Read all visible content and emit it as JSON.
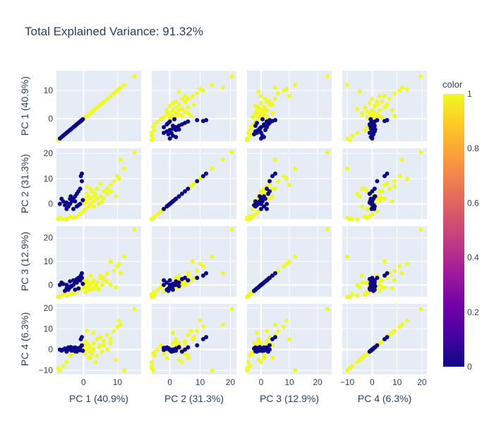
{
  "chart_data": {
    "type": "scatter",
    "subtype": "scatter-matrix",
    "title": "Total Explained Variance: 91.32%",
    "dimensions": [
      "PC 1 (40.9%)",
      "PC 2 (31.3%)",
      "PC 3 (12.9%)",
      "PC 4 (6.3%)"
    ],
    "axes": [
      {
        "label": "PC 1 (40.9%)",
        "range": [
          -8,
          17
        ],
        "ticks": [
          0,
          10
        ],
        "tick_labels": [
          "0",
          "10"
        ]
      },
      {
        "label": "PC 2 (31.3%)",
        "range": [
          -6,
          22
        ],
        "ticks": [
          0,
          10,
          20
        ],
        "tick_labels": [
          "0",
          "10",
          "20"
        ]
      },
      {
        "label": "PC 3 (12.9%)",
        "range": [
          -5,
          25
        ],
        "ticks": [
          0,
          10,
          20
        ],
        "tick_labels": [
          "0",
          "10",
          "20"
        ]
      },
      {
        "label": "PC 4 (6.3%)",
        "range": [
          -12,
          22
        ],
        "ticks": [
          -10,
          0,
          10,
          20
        ],
        "tick_labels": [
          "−10",
          "0",
          "10",
          "20"
        ]
      }
    ],
    "colorbar": {
      "title": "color",
      "range": [
        0,
        1
      ],
      "ticks": [
        0,
        0.2,
        0.4,
        0.6,
        0.8,
        1
      ],
      "tick_labels": [
        "0",
        "0.2",
        "0.4",
        "0.6",
        "0.8",
        "1"
      ],
      "colorscale": [
        "#0d0887",
        "#46039f",
        "#7201a8",
        "#9c179e",
        "#bd3786",
        "#d8576b",
        "#ed7953",
        "#fb9f3a",
        "#fdca26",
        "#f0f921"
      ]
    },
    "series": [
      {
        "color_value": 1,
        "color": "#f0f921",
        "points": [
          [
            15.0,
            20.5,
            23.5,
            19.5
          ],
          [
            12.0,
            14.0,
            12.0,
            -10.0
          ],
          [
            11.0,
            17.5,
            5.0,
            12.0
          ],
          [
            10.0,
            11.0,
            8.0,
            11.0
          ],
          [
            9.0,
            9.0,
            6.0,
            9.0
          ],
          [
            8.0,
            7.5,
            10.0,
            5.0
          ],
          [
            7.0,
            6.0,
            5.0,
            7.0
          ],
          [
            6.0,
            5.0,
            2.0,
            4.0
          ],
          [
            5.0,
            8.0,
            3.0,
            6.0
          ],
          [
            5.0,
            3.0,
            4.0,
            2.0
          ],
          [
            4.0,
            6.0,
            1.0,
            -3.0
          ],
          [
            4.0,
            2.0,
            -1.0,
            5.0
          ],
          [
            3.5,
            4.0,
            0.0,
            -6.0
          ],
          [
            3.0,
            3.0,
            2.0,
            3.0
          ],
          [
            3.0,
            1.0,
            -1.5,
            8.0
          ],
          [
            2.5,
            5.0,
            1.0,
            -2.0
          ],
          [
            2.0,
            2.0,
            0.0,
            1.0
          ],
          [
            2.0,
            0.0,
            -2.0,
            -1.0
          ],
          [
            1.5,
            3.0,
            -1.0,
            2.0
          ],
          [
            1.5,
            -1.0,
            1.0,
            -4.0
          ],
          [
            1.0,
            1.0,
            -2.5,
            3.0
          ],
          [
            1.0,
            4.0,
            0.5,
            0.0
          ],
          [
            0.5,
            2.0,
            -1.0,
            4.0
          ],
          [
            0.5,
            -2.0,
            -3.0,
            -2.0
          ],
          [
            0.2,
            0.0,
            2.0,
            1.0
          ],
          [
            6.0,
            2.0,
            3.0,
            2.0
          ],
          [
            7.0,
            4.0,
            1.5,
            0.0
          ],
          [
            8.0,
            5.0,
            0.0,
            3.0
          ],
          [
            9.5,
            3.0,
            -1.0,
            -5.0
          ],
          [
            10.5,
            10.0,
            9.0,
            14.0
          ],
          [
            3.0,
            -1.0,
            1.0,
            0.0
          ],
          [
            4.5,
            0.0,
            -2.0,
            1.0
          ],
          [
            5.5,
            1.0,
            0.0,
            -1.0
          ],
          [
            2.0,
            6.0,
            4.0,
            -4.0
          ],
          [
            1.0,
            7.0,
            2.0,
            9.0
          ],
          [
            0.0,
            -3.0,
            -1.0,
            2.0
          ],
          [
            -1.0,
            -4.0,
            -2.0,
            0.0
          ],
          [
            -2.0,
            -5.0,
            -3.0,
            -1.0
          ],
          [
            -3.0,
            -5.5,
            -3.5,
            -2.0
          ],
          [
            -4.0,
            -5.0,
            -4.0,
            -3.0
          ],
          [
            -5.0,
            -6.0,
            -4.5,
            -6.0
          ],
          [
            -6.0,
            -6.0,
            -4.0,
            -8.0
          ],
          [
            -7.0,
            -5.5,
            -5.0,
            -10.0
          ],
          [
            -7.5,
            -6.0,
            -5.0,
            -9.0
          ]
        ]
      },
      {
        "color_value": 0,
        "color": "#0d0887",
        "points": [
          [
            -0.5,
            12.0,
            5.0,
            6.0
          ],
          [
            -0.8,
            11.0,
            4.0,
            5.0
          ],
          [
            -0.5,
            9.0,
            3.0,
            2.0
          ],
          [
            -1.0,
            6.0,
            2.0,
            1.0
          ],
          [
            -1.5,
            5.0,
            3.0,
            0.0
          ],
          [
            -2.0,
            4.0,
            2.5,
            -1.0
          ],
          [
            -2.5,
            3.0,
            1.0,
            1.0
          ],
          [
            -3.0,
            2.0,
            0.0,
            0.5
          ],
          [
            -3.5,
            1.0,
            -0.5,
            -0.5
          ],
          [
            -4.0,
            0.0,
            -1.0,
            0.0
          ],
          [
            -4.5,
            -1.0,
            -2.0,
            1.0
          ],
          [
            -5.0,
            0.5,
            -1.5,
            -1.0
          ],
          [
            -5.5,
            -0.5,
            -2.5,
            0.5
          ],
          [
            -6.0,
            1.0,
            0.5,
            0.0
          ],
          [
            -6.5,
            2.0,
            1.0,
            -0.5
          ],
          [
            -7.0,
            0.0,
            0.0,
            0.0
          ],
          [
            -2.0,
            -1.0,
            1.0,
            0.3
          ],
          [
            -1.0,
            0.0,
            2.0,
            -0.3
          ],
          [
            -3.0,
            -2.0,
            2.0,
            0.8
          ],
          [
            -2.5,
            1.0,
            -2.0,
            -0.8
          ],
          [
            -4.0,
            2.0,
            1.5,
            0.2
          ],
          [
            -5.0,
            -2.0,
            0.0,
            -0.2
          ],
          [
            -1.5,
            -0.5,
            -1.5,
            0.6
          ],
          [
            -0.2,
            1.5,
            0.5,
            -0.6
          ],
          [
            -3.8,
            3.0,
            -0.5,
            1.2
          ]
        ]
      }
    ]
  }
}
